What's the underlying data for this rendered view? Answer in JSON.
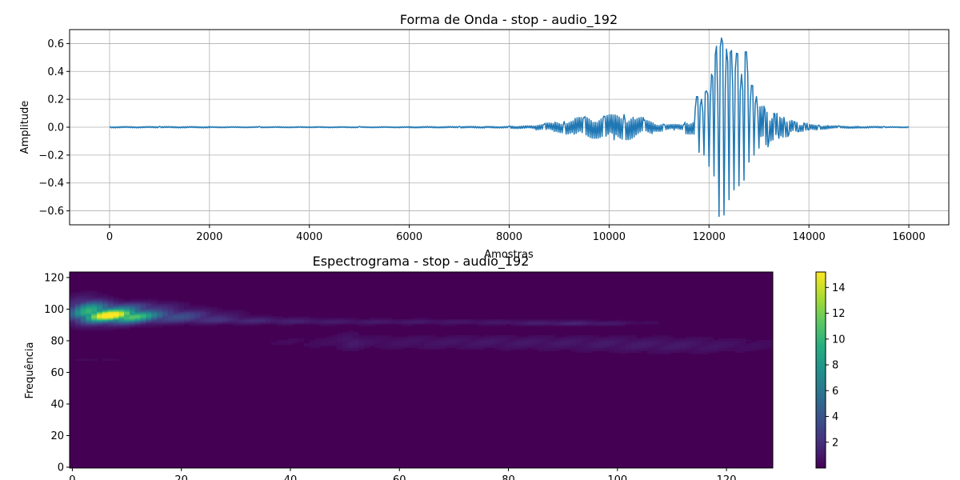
{
  "chart_data": [
    {
      "type": "line",
      "title": "Forma de Onda - stop - audio_192",
      "xlabel": "Amostras",
      "ylabel": "Amplitude",
      "xlim": [
        -800,
        16800
      ],
      "ylim": [
        -0.7,
        0.7
      ],
      "x_ticks": [
        0,
        2000,
        4000,
        6000,
        8000,
        10000,
        12000,
        14000,
        16000
      ],
      "x_tick_labels": [
        "0",
        "2000",
        "4000",
        "6000",
        "8000",
        "10000",
        "12000",
        "14000",
        "16000"
      ],
      "y_ticks": [
        -0.6,
        -0.4,
        -0.2,
        0.0,
        0.2,
        0.4,
        0.6
      ],
      "y_tick_labels": [
        "−0.6",
        "−0.4",
        "−0.2",
        "0.0",
        "0.2",
        "0.4",
        "0.6"
      ],
      "grid": true,
      "color": "#1f77b4",
      "series": [
        {
          "x": [
            0,
            1000,
            2000,
            3000,
            4000,
            5000,
            6000,
            7000,
            7500,
            8000,
            8500,
            8700,
            8900,
            9100,
            9300,
            9500,
            9700,
            9900,
            10100,
            10300,
            10500,
            10700,
            10900,
            11100,
            11300,
            11500,
            11700,
            11750,
            11800,
            11850,
            11900,
            11950,
            12000,
            12050,
            12100,
            12150,
            12200,
            12250,
            12300,
            12350,
            12400,
            12450,
            12500,
            12550,
            12600,
            12650,
            12700,
            12750,
            12800,
            12850,
            12900,
            12950,
            13000,
            13100,
            13200,
            13300,
            13400,
            13500,
            13600,
            13700,
            13800,
            13900,
            14000,
            14200,
            14400,
            14600,
            15000,
            15500,
            16000
          ],
          "y": [
            0.0,
            0.005,
            -0.004,
            0.004,
            -0.003,
            0.004,
            -0.004,
            0.005,
            -0.006,
            0.006,
            -0.01,
            0.02,
            -0.03,
            0.04,
            -0.05,
            0.07,
            -0.08,
            0.08,
            -0.09,
            0.09,
            -0.07,
            0.05,
            -0.03,
            0.02,
            -0.02,
            0.02,
            -0.05,
            0.22,
            -0.18,
            0.2,
            -0.2,
            0.26,
            -0.28,
            0.38,
            -0.35,
            0.58,
            -0.64,
            0.64,
            -0.63,
            0.56,
            -0.52,
            0.55,
            -0.45,
            0.53,
            -0.42,
            0.38,
            -0.38,
            0.54,
            -0.25,
            0.3,
            -0.2,
            0.22,
            -0.15,
            0.15,
            -0.1,
            0.1,
            -0.08,
            0.07,
            -0.05,
            0.04,
            -0.03,
            0.03,
            -0.02,
            0.015,
            -0.01,
            0.008,
            -0.006,
            0.004,
            0.0
          ]
        }
      ]
    },
    {
      "type": "heatmap",
      "title": "Espectrograma - stop - audio_192",
      "xlabel": "",
      "ylabel": "Frequência",
      "xlim": [
        -0.5,
        128.5
      ],
      "ylim": [
        -0.5,
        123.5
      ],
      "x_ticks": [
        0,
        20,
        40,
        60,
        80,
        100,
        120
      ],
      "x_tick_labels": [
        "0",
        "20",
        "40",
        "60",
        "80",
        "100",
        "120"
      ],
      "y_ticks": [
        0,
        20,
        40,
        60,
        80,
        100,
        120
      ],
      "y_tick_labels": [
        "0",
        "20",
        "40",
        "60",
        "80",
        "100",
        "120"
      ],
      "colormap": "viridis",
      "colorbar": {
        "vmin": 0,
        "vmax": 15.2,
        "ticks": [
          2,
          4,
          6,
          8,
          10,
          12,
          14
        ],
        "tick_labels": [
          "2",
          "4",
          "6",
          "8",
          "10",
          "12",
          "14"
        ]
      },
      "background_value": 0.1,
      "hotspots": [
        {
          "x": 8,
          "y": 96,
          "sx": 4,
          "sy": 3,
          "value": 12
        },
        {
          "x": 3,
          "y": 99,
          "sx": 2.5,
          "sy": 5,
          "value": 5
        },
        {
          "x": 17,
          "y": 96,
          "sx": 7,
          "sy": 2.5,
          "value": 3
        },
        {
          "x": 10,
          "y": 102,
          "sx": 6,
          "sy": 2,
          "value": 2
        },
        {
          "x": 30,
          "y": 93,
          "sx": 10,
          "sy": 1.5,
          "value": 1
        },
        {
          "x": 60,
          "y": 92,
          "sx": 22,
          "sy": 1.2,
          "value": 0.8
        },
        {
          "x": 92,
          "y": 91,
          "sx": 8,
          "sy": 1,
          "value": 1
        },
        {
          "x": 80,
          "y": 79,
          "sx": 28,
          "sy": 3,
          "value": 0.7
        },
        {
          "x": 110,
          "y": 76,
          "sx": 12,
          "sy": 3,
          "value": 0.5
        },
        {
          "x": 51,
          "y": 80,
          "sx": 1.5,
          "sy": 4,
          "value": 0.6
        },
        {
          "x": 5,
          "y": 68,
          "sx": 4,
          "sy": 1,
          "value": 0.3
        }
      ]
    }
  ]
}
